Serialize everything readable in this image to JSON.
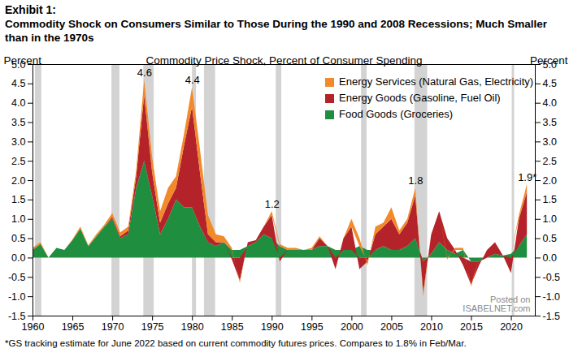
{
  "chart_data": {
    "type": "area",
    "stacked": true,
    "title": "Exhibit 1:",
    "subtitle": "Commodity Shock on Consumers Similar to Those During the 1990 and 2008 Recessions; Much Smaller than in the 1970s",
    "plot_title": "Commodity Price Shock, Percent of Consumer Spending",
    "y_label": "Percent",
    "footnote": "*GS tracking estimate for June 2022 based on current commodity futures prices. Compares to 1.8% in Feb/Mar.",
    "watermark": [
      "Posted on",
      "ISABELNET.com"
    ],
    "legend": "top-right",
    "x": [
      1960,
      1961,
      1962,
      1963,
      1964,
      1965,
      1966,
      1967,
      1968,
      1969,
      1970,
      1971,
      1972,
      1973,
      1974,
      1975,
      1976,
      1977,
      1978,
      1979,
      1980,
      1981,
      1982,
      1983,
      1984,
      1985,
      1986,
      1987,
      1988,
      1989,
      1990,
      1991,
      1992,
      1993,
      1994,
      1995,
      1996,
      1997,
      1998,
      1999,
      2000,
      2001,
      2002,
      2003,
      2004,
      2005,
      2006,
      2007,
      2008,
      2009,
      2010,
      2011,
      2012,
      2013,
      2014,
      2015,
      2016,
      2017,
      2018,
      2019,
      2020,
      2021,
      2022
    ],
    "series": [
      {
        "name": "Food Goods (Groceries)",
        "color": "#1f8f3f",
        "values": [
          0.2,
          0.35,
          0.0,
          0.25,
          0.2,
          0.45,
          0.75,
          0.3,
          0.55,
          0.8,
          1.0,
          0.5,
          0.6,
          1.8,
          2.5,
          1.6,
          0.6,
          1.0,
          1.5,
          1.3,
          1.3,
          0.8,
          0.4,
          0.3,
          0.4,
          0.2,
          0.2,
          0.3,
          0.4,
          0.6,
          0.5,
          0.3,
          0.2,
          0.2,
          0.2,
          0.2,
          0.3,
          0.3,
          0.2,
          0.2,
          0.2,
          0.3,
          0.2,
          0.2,
          0.3,
          0.2,
          0.2,
          0.3,
          0.5,
          -0.1,
          0.1,
          0.4,
          0.2,
          0.1,
          0.2,
          -0.1,
          -0.1,
          0.0,
          0.1,
          0.05,
          0.1,
          0.3,
          0.6
        ]
      },
      {
        "name": "Energy Goods (Gasoline, Fuel Oil)",
        "color": "#b5232a",
        "values": [
          0,
          0,
          0,
          0,
          0,
          0,
          0,
          0,
          0,
          0,
          0.05,
          0.05,
          0.1,
          0.3,
          1.7,
          0.6,
          0.3,
          0.4,
          0.3,
          1.6,
          2.6,
          1.4,
          0.2,
          0.1,
          0.0,
          -0.05,
          -0.6,
          0.1,
          0.05,
          0.2,
          0.6,
          -0.1,
          0,
          0,
          0,
          0,
          0.2,
          0,
          -0.3,
          0.3,
          0.6,
          -0.3,
          -0.1,
          0.4,
          0.5,
          0.8,
          0.4,
          0.6,
          1.1,
          -0.8,
          0.5,
          0.8,
          0.3,
          0.1,
          -0.2,
          -0.6,
          -0.1,
          0.2,
          0.3,
          0,
          -0.4,
          0.7,
          1.1
        ]
      },
      {
        "name": "Energy Services (Natural Gas, Electricity)",
        "color": "#f28a2b",
        "values": [
          0.05,
          0.05,
          0,
          0,
          0,
          0.02,
          0.05,
          0.02,
          0.05,
          0.05,
          0.1,
          0.1,
          0.1,
          0.15,
          0.4,
          0.4,
          0.3,
          0.4,
          0.3,
          0.3,
          0.5,
          0.6,
          0.5,
          0.2,
          0.15,
          0.05,
          -0.05,
          0,
          0,
          0,
          0.1,
          0.05,
          0.05,
          0.05,
          0,
          0.05,
          0.05,
          0,
          0,
          0,
          0.2,
          0.2,
          -0.1,
          0.2,
          0.1,
          0.3,
          0.1,
          0.1,
          0.2,
          -0.1,
          0,
          0,
          -0.05,
          0.05,
          0.05,
          -0.05,
          0,
          0,
          0,
          0,
          0,
          0.1,
          0.2
        ]
      }
    ],
    "recessions": [
      [
        1960.3,
        1961.1
      ],
      [
        1969.9,
        1970.9
      ],
      [
        1973.9,
        1975.2
      ],
      [
        1980.0,
        1980.5
      ],
      [
        1981.5,
        1982.9
      ],
      [
        1990.5,
        1991.2
      ],
      [
        2001.2,
        2001.9
      ],
      [
        2007.9,
        2009.5
      ],
      [
        2020.1,
        2020.4
      ]
    ],
    "recession_color": "#d3d3d3",
    "annotations": [
      {
        "x": 1974,
        "y": 4.6,
        "label": "4.6"
      },
      {
        "x": 1980,
        "y": 4.4,
        "label": "4.4"
      },
      {
        "x": 1990,
        "y": 1.2,
        "label": "1.2"
      },
      {
        "x": 2008,
        "y": 1.8,
        "label": "1.8"
      },
      {
        "x": 2022,
        "y": 1.9,
        "label": "1.9*"
      }
    ],
    "xlim": [
      1960,
      2023
    ],
    "xticks": [
      1960,
      1965,
      1970,
      1975,
      1980,
      1985,
      1990,
      1995,
      2000,
      2005,
      2010,
      2015,
      2020
    ],
    "ylim": [
      -1.5,
      5.0
    ],
    "yticks": [
      {
        "value": -1.5,
        "label": "-1.5"
      },
      {
        "value": -1,
        "label": "-1.0"
      },
      {
        "value": -0.5,
        "label": "-0.5"
      },
      {
        "value": 0,
        "label": "0.0"
      },
      {
        "value": 0.5,
        "label": "0.5"
      },
      {
        "value": 1,
        "label": "1.0"
      },
      {
        "value": 1.5,
        "label": "1.5"
      },
      {
        "value": 2,
        "label": "2.0"
      },
      {
        "value": 2.5,
        "label": "2.5"
      },
      {
        "value": 3,
        "label": "3.0"
      },
      {
        "value": 3.5,
        "label": "3.5"
      },
      {
        "value": 4,
        "label": "4.0"
      },
      {
        "value": 4.5,
        "label": "4.5"
      },
      {
        "value": 5,
        "label": "5.0"
      }
    ],
    "grid": false
  }
}
